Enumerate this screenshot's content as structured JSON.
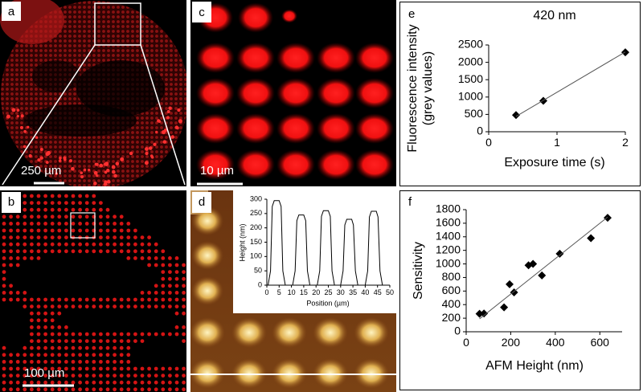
{
  "panels": {
    "a": {
      "letter": "a",
      "scale_bar": "250 µm"
    },
    "b": {
      "letter": "b",
      "scale_bar": "100 µm"
    },
    "c": {
      "letter": "c",
      "scale_bar": "10 µm"
    },
    "d": {
      "letter": "d"
    },
    "e": {
      "letter": "e"
    },
    "f": {
      "letter": "f"
    }
  },
  "chart_data": [
    {
      "type": "line",
      "x_label": "Position (µm)",
      "y_label": "Height (nm)",
      "x": [
        0,
        0.5,
        1.5,
        2.2,
        3,
        5,
        5.8,
        6.5,
        7.5,
        10.5,
        11.5,
        12.2,
        13,
        15,
        15.8,
        16.5,
        17.5,
        20.5,
        21.5,
        22.2,
        23,
        25,
        25.8,
        26.5,
        27.5,
        30,
        31,
        31.7,
        32.5,
        34.5,
        35.2,
        36,
        37,
        40,
        41,
        41.7,
        42.5,
        44.5,
        45.2,
        46,
        47
      ],
      "values": [
        0,
        0,
        50,
        275,
        295,
        295,
        275,
        50,
        0,
        0,
        50,
        225,
        245,
        245,
        225,
        50,
        0,
        0,
        50,
        240,
        260,
        260,
        240,
        50,
        0,
        0,
        50,
        210,
        230,
        230,
        210,
        50,
        0,
        0,
        50,
        238,
        258,
        258,
        238,
        50,
        0
      ],
      "xlim": [
        0,
        50
      ],
      "ylim": [
        0,
        300
      ],
      "xticks": [
        0,
        5,
        10,
        15,
        20,
        25,
        30,
        35,
        40,
        45,
        50
      ],
      "yticks": [
        0,
        50,
        100,
        150,
        200,
        250,
        300
      ],
      "color": "#000000"
    },
    {
      "type": "scatter",
      "title": "420 nm",
      "x_label": "Exposure time (s)",
      "y_label": [
        "Fluorescence intensity",
        "(grey values)"
      ],
      "x": [
        0.4,
        0.8,
        2
      ],
      "values": [
        480,
        890,
        2290
      ],
      "trendline": {
        "x": [
          0.4,
          2
        ],
        "values": [
          440,
          2300
        ]
      },
      "xlim": [
        0,
        2
      ],
      "ylim": [
        0,
        2500
      ],
      "xticks": [
        0,
        1,
        2
      ],
      "yticks": [
        0,
        500,
        1000,
        1500,
        2000,
        2500
      ],
      "color": "#000000"
    },
    {
      "type": "scatter",
      "x_label": "AFM Height (nm)",
      "y_label": [
        "Sensitivity"
      ],
      "x": [
        60,
        80,
        170,
        195,
        215,
        280,
        300,
        340,
        420,
        560,
        635
      ],
      "values": [
        265,
        270,
        360,
        700,
        580,
        980,
        1000,
        830,
        1150,
        1380,
        1680
      ],
      "trendline": {
        "x": [
          60,
          635
        ],
        "values": [
          190,
          1690
        ]
      },
      "xlim": [
        0,
        700
      ],
      "ylim": [
        0,
        1800
      ],
      "xticks": [
        0,
        200,
        400,
        600
      ],
      "yticks": [
        0,
        200,
        400,
        600,
        800,
        1000,
        1200,
        1400,
        1600,
        1800
      ],
      "color": "#000000"
    }
  ]
}
